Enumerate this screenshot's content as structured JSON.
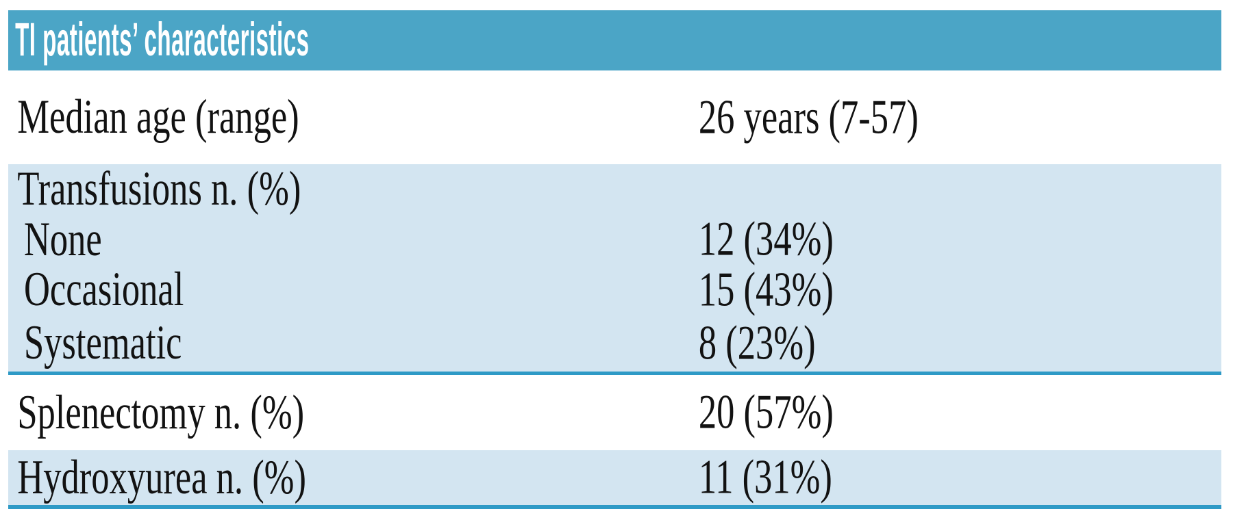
{
  "table": {
    "title": "TI patients’ characteristics",
    "rows": [
      {
        "label": "Median age (range)",
        "value": "26 years (7-57)"
      },
      {
        "label": "Transfusions n. (%)"
      },
      {
        "label": "None",
        "value": "12 (34%)",
        "indent": true
      },
      {
        "label": "Occasional",
        "value": "15 (43%)",
        "indent": true
      },
      {
        "label": "Systematic",
        "value": "8 (23%)",
        "indent": true
      },
      {
        "label": "Splenectomy n. (%)",
        "value": "20 (57%)"
      },
      {
        "label": "Hydroxyurea n. (%)",
        "value": "11 (31%)"
      }
    ],
    "colors": {
      "page_bg": "#FFFFFF",
      "header_bg": "#4BA5C6",
      "header_text": "#FFFFFF",
      "band_blue": "#D3E5F1",
      "band_white": "#FFFFFF",
      "rule_blue": "#2E9AC6",
      "text": "#121212"
    }
  }
}
